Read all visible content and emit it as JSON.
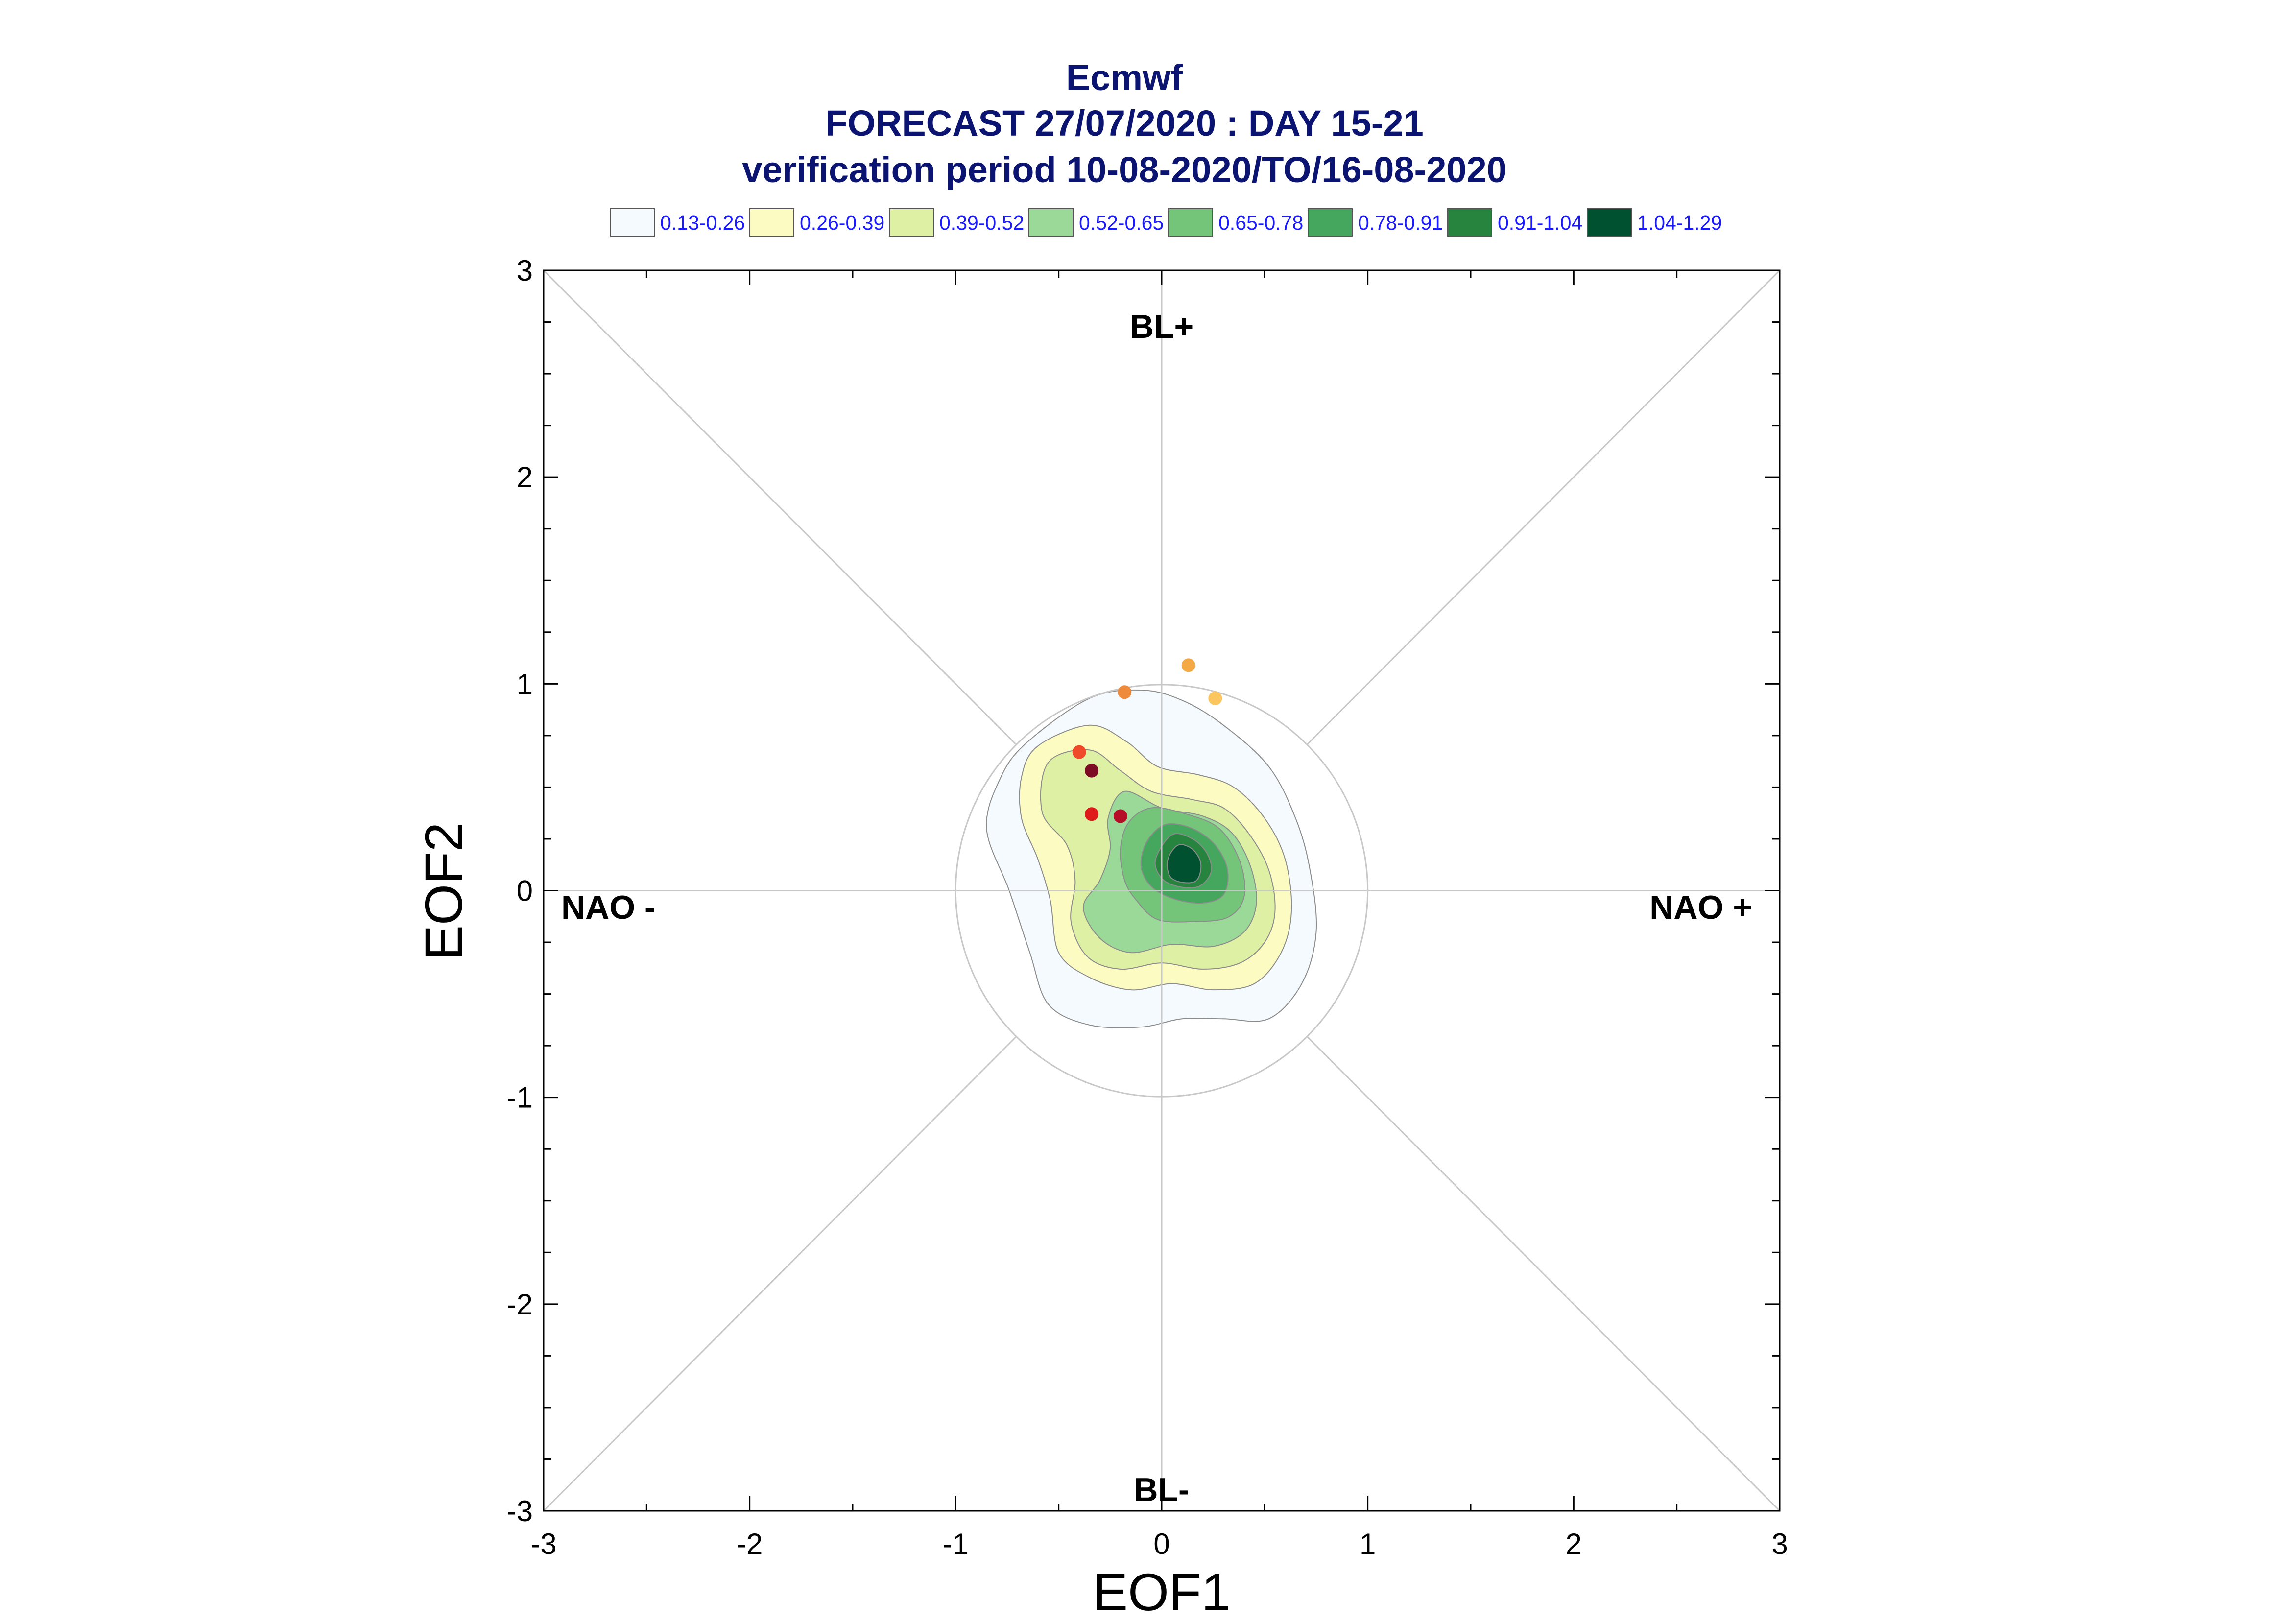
{
  "chart_data": {
    "type": "contour-scatter",
    "title": [
      "Ecmwf",
      "FORECAST 27/07/2020 : DAY 15-21",
      "verification period 10-08-2020/TO/16-08-2020"
    ],
    "xlabel": "EOF1",
    "ylabel": "EOF2",
    "xlim": [
      -3,
      3
    ],
    "ylim": [
      -3,
      3
    ],
    "xticks": [
      -3,
      -2,
      -1,
      0,
      1,
      2,
      3
    ],
    "yticks": [
      -3,
      -2,
      -1,
      0,
      1,
      2,
      3
    ],
    "xtick_labels": [
      "-3",
      "-2",
      "-1",
      "0",
      "1",
      "2",
      "3"
    ],
    "ytick_labels": [
      "-3",
      "-2",
      "-1",
      "0",
      "1",
      "2",
      "3"
    ],
    "region_labels": [
      "BL+",
      "BL-",
      "NAO -",
      "NAO +"
    ],
    "reference_circle_radius": 1,
    "legend": [
      {
        "label": "0.13-0.26",
        "color": "#f4fafd"
      },
      {
        "label": "0.26-0.39",
        "color": "#fbfbc2"
      },
      {
        "label": "0.39-0.52",
        "color": "#def0a4"
      },
      {
        "label": "0.52-0.65",
        "color": "#9ad997"
      },
      {
        "label": "0.65-0.78",
        "color": "#74c47a"
      },
      {
        "label": "0.78-0.91",
        "color": "#45a65d"
      },
      {
        "label": "0.91-1.04",
        "color": "#26843f"
      },
      {
        "label": "1.04-1.29",
        "color": "#005130"
      }
    ],
    "density_contours": [
      {
        "level": "0.13-0.26",
        "color": "#f4fafd",
        "points": [
          [
            -0.65,
            0.72
          ],
          [
            -0.35,
            0.93
          ],
          [
            -0.1,
            0.97
          ],
          [
            0.1,
            0.92
          ],
          [
            0.3,
            0.8
          ],
          [
            0.52,
            0.6
          ],
          [
            0.65,
            0.35
          ],
          [
            0.72,
            0.1
          ],
          [
            0.75,
            -0.2
          ],
          [
            0.68,
            -0.45
          ],
          [
            0.52,
            -0.62
          ],
          [
            0.3,
            -0.62
          ],
          [
            0.1,
            -0.62
          ],
          [
            -0.1,
            -0.66
          ],
          [
            -0.35,
            -0.65
          ],
          [
            -0.55,
            -0.55
          ],
          [
            -0.64,
            -0.3
          ],
          [
            -0.74,
            0.0
          ],
          [
            -0.85,
            0.3
          ],
          [
            -0.78,
            0.55
          ]
        ]
      },
      {
        "level": "0.26-0.39",
        "color": "#fbfbc2",
        "points": [
          [
            -0.6,
            0.7
          ],
          [
            -0.35,
            0.8
          ],
          [
            -0.17,
            0.72
          ],
          [
            -0.02,
            0.6
          ],
          [
            0.18,
            0.56
          ],
          [
            0.35,
            0.5
          ],
          [
            0.5,
            0.35
          ],
          [
            0.6,
            0.15
          ],
          [
            0.63,
            -0.1
          ],
          [
            0.58,
            -0.3
          ],
          [
            0.45,
            -0.45
          ],
          [
            0.25,
            -0.48
          ],
          [
            0.05,
            -0.45
          ],
          [
            -0.15,
            -0.48
          ],
          [
            -0.35,
            -0.42
          ],
          [
            -0.5,
            -0.3
          ],
          [
            -0.54,
            -0.05
          ],
          [
            -0.6,
            0.15
          ],
          [
            -0.68,
            0.35
          ],
          [
            -0.68,
            0.55
          ]
        ]
      },
      {
        "level": "0.39-0.52",
        "color": "#def0a4",
        "points": [
          [
            -0.55,
            0.62
          ],
          [
            -0.35,
            0.68
          ],
          [
            -0.2,
            0.58
          ],
          [
            -0.05,
            0.48
          ],
          [
            0.15,
            0.44
          ],
          [
            0.3,
            0.4
          ],
          [
            0.42,
            0.28
          ],
          [
            0.52,
            0.1
          ],
          [
            0.55,
            -0.1
          ],
          [
            0.5,
            -0.25
          ],
          [
            0.38,
            -0.35
          ],
          [
            0.2,
            -0.38
          ],
          [
            0.0,
            -0.35
          ],
          [
            -0.2,
            -0.38
          ],
          [
            -0.36,
            -0.32
          ],
          [
            -0.44,
            -0.15
          ],
          [
            -0.42,
            0.05
          ],
          [
            -0.46,
            0.22
          ],
          [
            -0.58,
            0.38
          ]
        ]
      },
      {
        "level": "0.52-0.65",
        "color": "#9ad997",
        "points": [
          [
            -0.18,
            0.48
          ],
          [
            0.0,
            0.4
          ],
          [
            0.2,
            0.36
          ],
          [
            0.34,
            0.28
          ],
          [
            0.43,
            0.12
          ],
          [
            0.46,
            -0.06
          ],
          [
            0.4,
            -0.2
          ],
          [
            0.25,
            -0.27
          ],
          [
            0.05,
            -0.26
          ],
          [
            -0.15,
            -0.3
          ],
          [
            -0.3,
            -0.23
          ],
          [
            -0.38,
            -0.08
          ],
          [
            -0.3,
            0.05
          ],
          [
            -0.25,
            0.2
          ],
          [
            -0.26,
            0.35
          ]
        ]
      },
      {
        "level": "0.65-0.78",
        "color": "#74c47a",
        "points": [
          [
            -0.05,
            0.4
          ],
          [
            0.12,
            0.37
          ],
          [
            0.28,
            0.3
          ],
          [
            0.38,
            0.14
          ],
          [
            0.4,
            -0.03
          ],
          [
            0.32,
            -0.13
          ],
          [
            0.15,
            -0.15
          ],
          [
            -0.02,
            -0.14
          ],
          [
            -0.12,
            -0.05
          ],
          [
            -0.18,
            0.05
          ],
          [
            -0.2,
            0.2
          ],
          [
            -0.16,
            0.33
          ]
        ]
      },
      {
        "level": "0.78-0.91",
        "color": "#45a65d",
        "points": [
          [
            0.02,
            0.32
          ],
          [
            0.15,
            0.3
          ],
          [
            0.26,
            0.22
          ],
          [
            0.32,
            0.1
          ],
          [
            0.3,
            -0.02
          ],
          [
            0.2,
            -0.06
          ],
          [
            0.06,
            -0.04
          ],
          [
            -0.05,
            0.02
          ],
          [
            -0.1,
            0.12
          ],
          [
            -0.07,
            0.24
          ]
        ]
      },
      {
        "level": "0.91-1.04",
        "color": "#26843f",
        "points": [
          [
            0.05,
            0.27
          ],
          [
            0.15,
            0.25
          ],
          [
            0.22,
            0.18
          ],
          [
            0.24,
            0.09
          ],
          [
            0.18,
            0.02
          ],
          [
            0.08,
            0.02
          ],
          [
            0.0,
            0.06
          ],
          [
            -0.03,
            0.15
          ]
        ]
      },
      {
        "level": "1.04-1.29",
        "color": "#005130",
        "points": [
          [
            0.08,
            0.22
          ],
          [
            0.15,
            0.2
          ],
          [
            0.19,
            0.13
          ],
          [
            0.17,
            0.05
          ],
          [
            0.1,
            0.04
          ],
          [
            0.04,
            0.07
          ],
          [
            0.03,
            0.15
          ]
        ]
      }
    ],
    "points": [
      {
        "x": 0.13,
        "y": 1.09,
        "color": "#f5a944"
      },
      {
        "x": -0.18,
        "y": 0.96,
        "color": "#ed8a3c"
      },
      {
        "x": 0.26,
        "y": 0.93,
        "color": "#fbc560"
      },
      {
        "x": -0.4,
        "y": 0.67,
        "color": "#ef4b2a"
      },
      {
        "x": -0.34,
        "y": 0.58,
        "color": "#7b0c24"
      },
      {
        "x": -0.34,
        "y": 0.37,
        "color": "#de1a1a"
      },
      {
        "x": -0.2,
        "y": 0.36,
        "color": "#b60e26"
      }
    ]
  }
}
